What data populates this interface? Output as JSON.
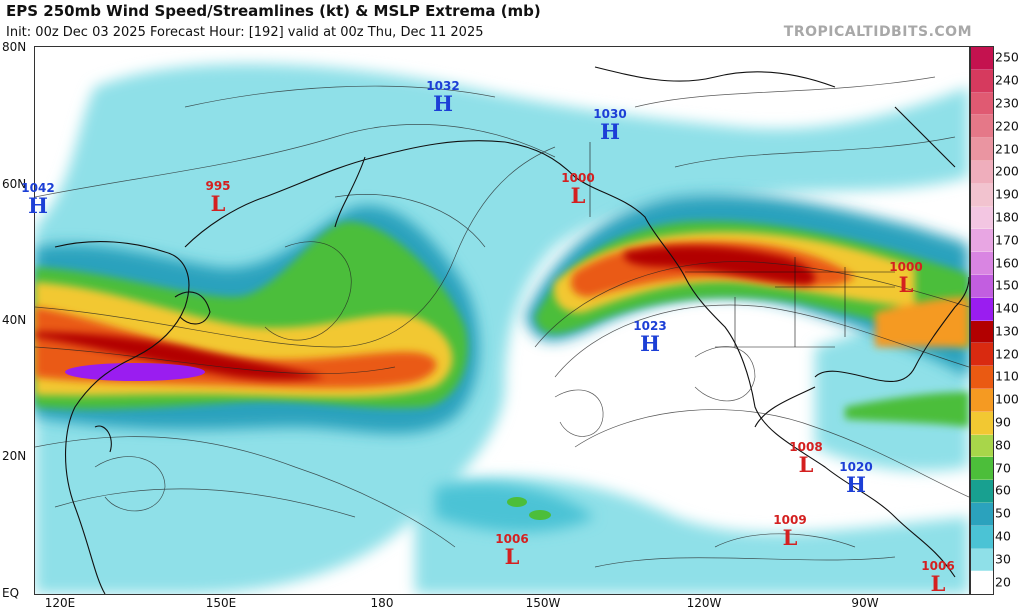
{
  "header": {
    "title": "EPS 250mb Wind Speed/Streamlines (kt) & MSLP Extrema (mb)",
    "subtitle": "Init: 00z Dec 03 2025   Forecast Hour: [192]   valid at 00z Thu, Dec 11 2025",
    "source": "TROPICALTIDBITS.COM"
  },
  "axes": {
    "lat_labels": [
      "80N",
      "60N",
      "40N",
      "20N",
      "EQ"
    ],
    "lon_labels": [
      "120E",
      "150E",
      "180",
      "150W",
      "120W",
      "90W"
    ]
  },
  "colorbar": {
    "labels": [
      "250",
      "240",
      "230",
      "220",
      "210",
      "200",
      "190",
      "180",
      "170",
      "160",
      "150",
      "140",
      "130",
      "120",
      "110",
      "100",
      "90",
      "80",
      "70",
      "60",
      "50",
      "40",
      "30",
      "20"
    ],
    "colors": [
      "#c4124f",
      "#d63a5e",
      "#e05a72",
      "#e57888",
      "#ea95a1",
      "#efaebc",
      "#f2c3cf",
      "#f3c6e2",
      "#e8a6e3",
      "#d985e2",
      "#c25ee0",
      "#9a1df0",
      "#b20000",
      "#d92a10",
      "#ea5a12",
      "#f59a22",
      "#f2c832",
      "#a8d64a",
      "#4cbe3a",
      "#18a090",
      "#2ba2bd",
      "#4bc3d5",
      "#8fe0e8",
      "#ffffff"
    ]
  },
  "pressure_centers": [
    {
      "type": "H",
      "value": "1042"
    },
    {
      "type": "L",
      "value": "995"
    },
    {
      "type": "H",
      "value": "1032"
    },
    {
      "type": "H",
      "value": "1030"
    },
    {
      "type": "L",
      "value": "1000"
    },
    {
      "type": "L",
      "value": "1000"
    },
    {
      "type": "H",
      "value": "1023"
    },
    {
      "type": "L",
      "value": "1008"
    },
    {
      "type": "H",
      "value": "1020"
    },
    {
      "type": "L",
      "value": "1009"
    },
    {
      "type": "L",
      "value": "1006"
    },
    {
      "type": "L",
      "value": "1006"
    }
  ]
}
